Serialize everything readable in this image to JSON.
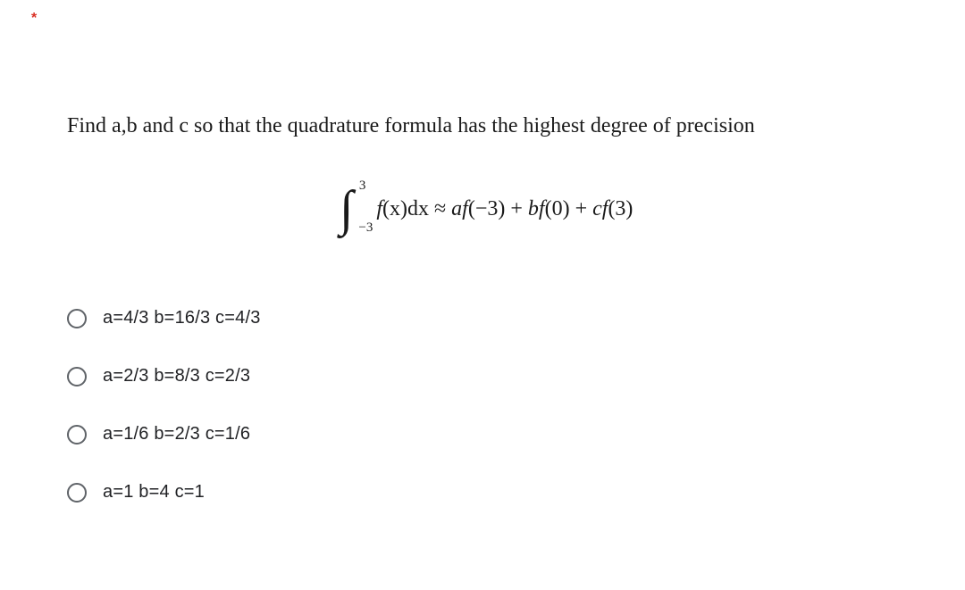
{
  "required_marker": "*",
  "question": "Find a,b and c so that the quadrature formula has the highest degree of precision",
  "formula": {
    "upper_limit": "3",
    "lower_limit": "−3",
    "integrand_f": "f",
    "integrand_x": "(x)dx",
    "approx": " ≈ ",
    "rhs_a": "af",
    "rhs_a_arg": "(−3) + ",
    "rhs_b": "bf",
    "rhs_b_arg": "(0) + ",
    "rhs_c": "cf",
    "rhs_c_arg": "(3)"
  },
  "options": [
    "a=4/3 b=16/3 c=4/3",
    "a=2/3 b=8/3 c=2/3",
    "a=1/6 b=2/3 c=1/6",
    "a=1 b=4 c=1"
  ]
}
